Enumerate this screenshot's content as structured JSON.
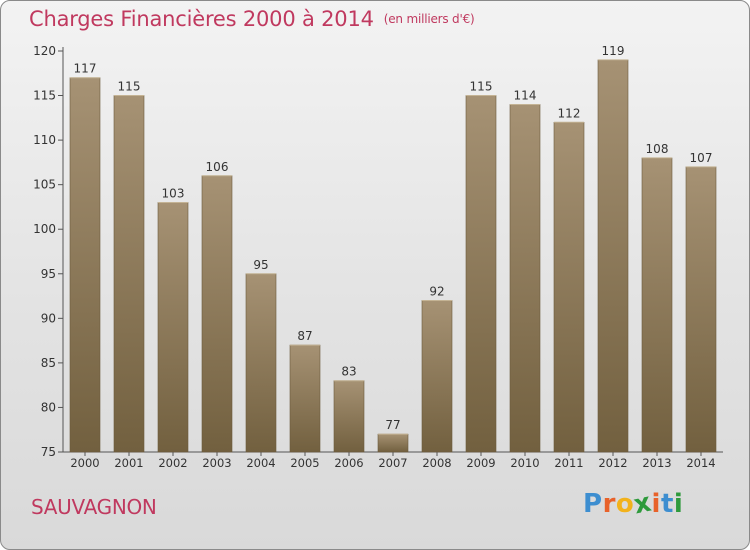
{
  "header": {
    "title": "Charges Financières 2000 à 2014",
    "subtitle": "(en milliers d'€)"
  },
  "footer": {
    "commune": "SAUVAGNON",
    "logo_letters": [
      "P",
      "r",
      "o",
      "x",
      "i",
      "t",
      "i"
    ]
  },
  "colors": {
    "title": "#c0395f",
    "bar_top": "#a69274",
    "bar_bottom": "#72603f",
    "logo": [
      "#3d8ed0",
      "#e8622a",
      "#f2b21c",
      "#2e9a3c",
      "#e8622a",
      "#3d8ed0",
      "#2e9a3c"
    ]
  },
  "chart_data": {
    "type": "bar",
    "title": "Charges Financières 2000 à 2014",
    "subtitle": "(en milliers d'€)",
    "categories": [
      "2000",
      "2001",
      "2002",
      "2003",
      "2004",
      "2005",
      "2006",
      "2007",
      "2008",
      "2009",
      "2010",
      "2011",
      "2012",
      "2013",
      "2014"
    ],
    "values": [
      117,
      115,
      103,
      106,
      95,
      87,
      83,
      77,
      92,
      115,
      114,
      112,
      119,
      108,
      107
    ],
    "ylim": [
      75,
      120
    ],
    "yticks": [
      75,
      80,
      85,
      90,
      95,
      100,
      105,
      110,
      115,
      120
    ],
    "grid": false,
    "data_labels": true
  }
}
